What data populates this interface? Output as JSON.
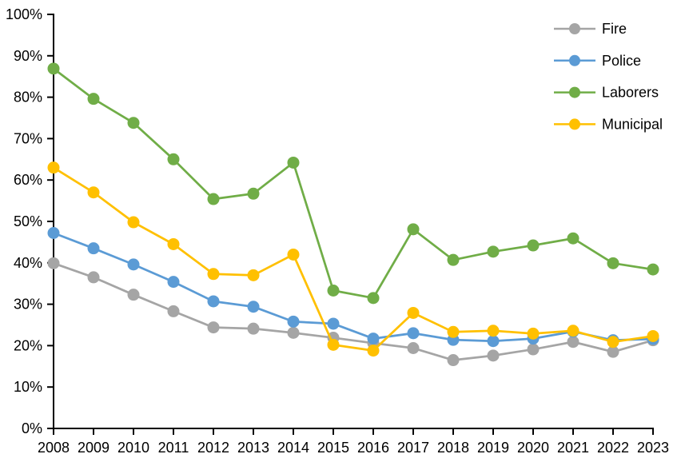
{
  "chart_data": {
    "type": "line",
    "unit": "%",
    "categories": [
      "2008",
      "2009",
      "2010",
      "2011",
      "2012",
      "2013",
      "2014",
      "2015",
      "2016",
      "2017",
      "2018",
      "2019",
      "2020",
      "2021",
      "2022",
      "2023"
    ],
    "series": [
      {
        "name": "Fire",
        "color": "#A5A5A5",
        "values": [
          39.9,
          36.5,
          32.3,
          28.3,
          24.4,
          24.1,
          23.1,
          21.9,
          20.6,
          19.4,
          16.5,
          17.6,
          19.1,
          20.9,
          18.5,
          21.3
        ]
      },
      {
        "name": "Police",
        "color": "#5B9BD5",
        "values": [
          47.2,
          43.5,
          39.6,
          35.4,
          30.7,
          29.4,
          25.8,
          25.3,
          21.7,
          23.0,
          21.4,
          21.1,
          21.7,
          23.4,
          21.3,
          21.6
        ]
      },
      {
        "name": "Laborers",
        "color": "#70AD47",
        "values": [
          86.9,
          79.6,
          73.8,
          65.0,
          55.4,
          56.7,
          64.2,
          33.3,
          31.5,
          48.1,
          40.7,
          42.7,
          44.2,
          45.9,
          39.9,
          38.4
        ]
      },
      {
        "name": "Municipal",
        "color": "#FFC000",
        "values": [
          63.0,
          57.0,
          49.8,
          44.5,
          37.3,
          37.0,
          42.0,
          20.2,
          18.8,
          27.9,
          23.3,
          23.6,
          22.9,
          23.6,
          20.9,
          22.3
        ]
      }
    ],
    "ylim": [
      0,
      100
    ],
    "y_ticks": [
      {
        "value": 0,
        "label": "0%"
      },
      {
        "value": 10,
        "label": "10%"
      },
      {
        "value": 20,
        "label": "20%"
      },
      {
        "value": 30,
        "label": "30%"
      },
      {
        "value": 40,
        "label": "40%"
      },
      {
        "value": 50,
        "label": "50%"
      },
      {
        "value": 60,
        "label": "60%"
      },
      {
        "value": 70,
        "label": "70%"
      },
      {
        "value": 80,
        "label": "80%"
      },
      {
        "value": 90,
        "label": "90%"
      },
      {
        "value": 100,
        "label": "100%"
      }
    ],
    "grid": false,
    "legend_position": "top-right",
    "legend_items": [
      "Fire",
      "Police",
      "Laborers",
      "Municipal"
    ],
    "axis_color": "#000000",
    "text_color": "#000000",
    "background_color": "#FFFFFF"
  }
}
